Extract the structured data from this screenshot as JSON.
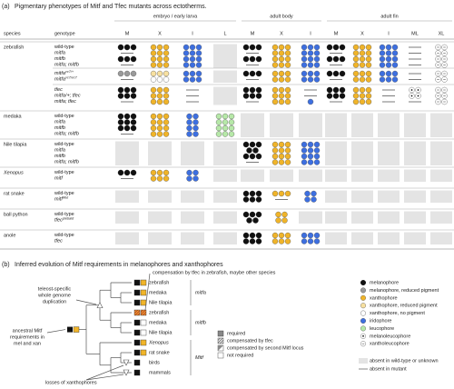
{
  "panel_a": {
    "label": "(a)",
    "title": "Pigmentary phenotypes of Mitf and Tfec mutants across ectotherms.",
    "species_header": "species",
    "genotype_header": "genotype",
    "stage_groups": [
      {
        "name": "embryo / early larva",
        "columns": [
          "M",
          "X",
          "I",
          "L"
        ]
      },
      {
        "name": "adult body",
        "columns": [
          "M",
          "X",
          "I"
        ]
      },
      {
        "name": "adult fin",
        "columns": [
          "M",
          "X",
          "I",
          "ML",
          "XL"
        ]
      }
    ],
    "rows": [
      {
        "species": "zebrafish",
        "genotypes": [
          {
            "name": "wild-type"
          },
          {
            "name": "mitfa"
          },
          {
            "name": "mitfb"
          },
          {
            "name": "mitfa; mitfb"
          }
        ]
      },
      {
        "genotypes": [
          {
            "name": "mitfa",
            "sup": "vc7/+"
          },
          {
            "name": "mitfa",
            "sup": "vc7/vc7"
          }
        ]
      },
      {
        "genotypes": [
          {
            "name": "tfec"
          },
          {
            "name": "mitfa/+; tfec"
          },
          {
            "name": "mitfa; tfec"
          }
        ]
      },
      {
        "species": "medaka",
        "genotypes": [
          {
            "name": "wild-type"
          },
          {
            "name": "mitfa"
          },
          {
            "name": "mitfb"
          },
          {
            "name": "mitfa; mitfb"
          }
        ]
      },
      {
        "species": "Nile tilapia",
        "genotypes": [
          {
            "name": "wild-type"
          },
          {
            "name": "mitfa"
          },
          {
            "name": "mitfb"
          },
          {
            "name": "mitfa; mitfb"
          }
        ]
      },
      {
        "species": "Xenopus",
        "genotypes": [
          {
            "name": "wild-type"
          },
          {
            "name": "mitf"
          }
        ]
      },
      {
        "species": "rat snake",
        "genotypes": [
          {
            "name": "wild-type"
          },
          {
            "name": "mitf",
            "sup": "Mut"
          }
        ]
      },
      {
        "species": "ball python",
        "genotypes": [
          {
            "name": "wild-type"
          },
          {
            "name": "tfec",
            "sup": "piebald"
          }
        ]
      },
      {
        "species": "anole",
        "genotypes": [
          {
            "name": "wild-type"
          },
          {
            "name": "tfec"
          }
        ]
      }
    ]
  },
  "panel_b": {
    "label": "(b)",
    "title": "Inferred evolution of Mitf requirements in melanophores and xanthophores",
    "compensation_note": "compensation by tfec in zebrafish, maybe other species",
    "duplication_note": [
      "teleost-specific",
      "whole genome",
      "duplication"
    ],
    "ancestral_note": [
      "ancestral Mitf",
      "requirements in",
      "mel and xan"
    ],
    "losses_note": "losses of xanthophores",
    "taxa": [
      "zebrafish",
      "medaka",
      "Nile tilapia",
      "zebrafish",
      "medaka",
      "Nile tilapia",
      "Xenopus",
      "rat snake",
      "birds",
      "mammals"
    ],
    "genes": [
      "mitfa",
      "mitfb",
      "Mitf"
    ],
    "states": [
      "required",
      "compensated by tfec",
      "compensated by second Mitf locus",
      "not required"
    ],
    "cell_types": [
      "melanophore",
      "melanophore, reduced pigment",
      "xanthophore",
      "xanthophore, reduced pigment",
      "xanthophore, no pigment",
      "iridophore",
      "leucophore",
      "melanoleucophore",
      "xantholeucophore"
    ],
    "absent_wild_type": "absent in wild-type or unknown",
    "absent_mutant": "absent in mutant"
  }
}
